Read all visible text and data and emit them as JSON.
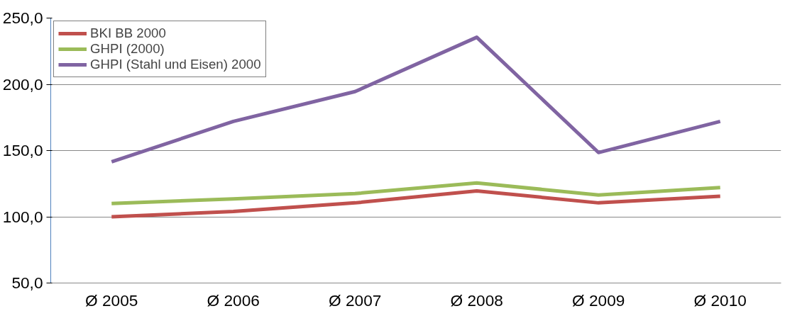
{
  "chart_data": {
    "type": "line",
    "categories": [
      "Ø 2005",
      "Ø 2006",
      "Ø 2007",
      "Ø 2008",
      "Ø 2009",
      "Ø 2010"
    ],
    "series": [
      {
        "name": "BKI BB 2000",
        "color": "#c0504d",
        "values": [
          100,
          104,
          110.5,
          119.5,
          110.5,
          115.5
        ]
      },
      {
        "name": "GHPI (2000)",
        "color": "#9bbb59",
        "values": [
          110,
          113.5,
          117.5,
          125.5,
          116.5,
          122
        ]
      },
      {
        "name": "GHPI (Stahl und Eisen) 2000",
        "color": "#8064a2",
        "values": [
          141.5,
          172,
          194.5,
          235.5,
          148.5,
          172
        ]
      }
    ],
    "ylim": [
      50,
      250
    ],
    "yticks": [
      {
        "value": 50,
        "label": "50,0"
      },
      {
        "value": 100,
        "label": "100,0"
      },
      {
        "value": 150,
        "label": "150,0"
      },
      {
        "value": 200,
        "label": "200,0"
      },
      {
        "value": 250,
        "label": "250,0"
      }
    ],
    "grid": "y",
    "legend": "top left",
    "marker": "none",
    "line_style": "solid"
  }
}
